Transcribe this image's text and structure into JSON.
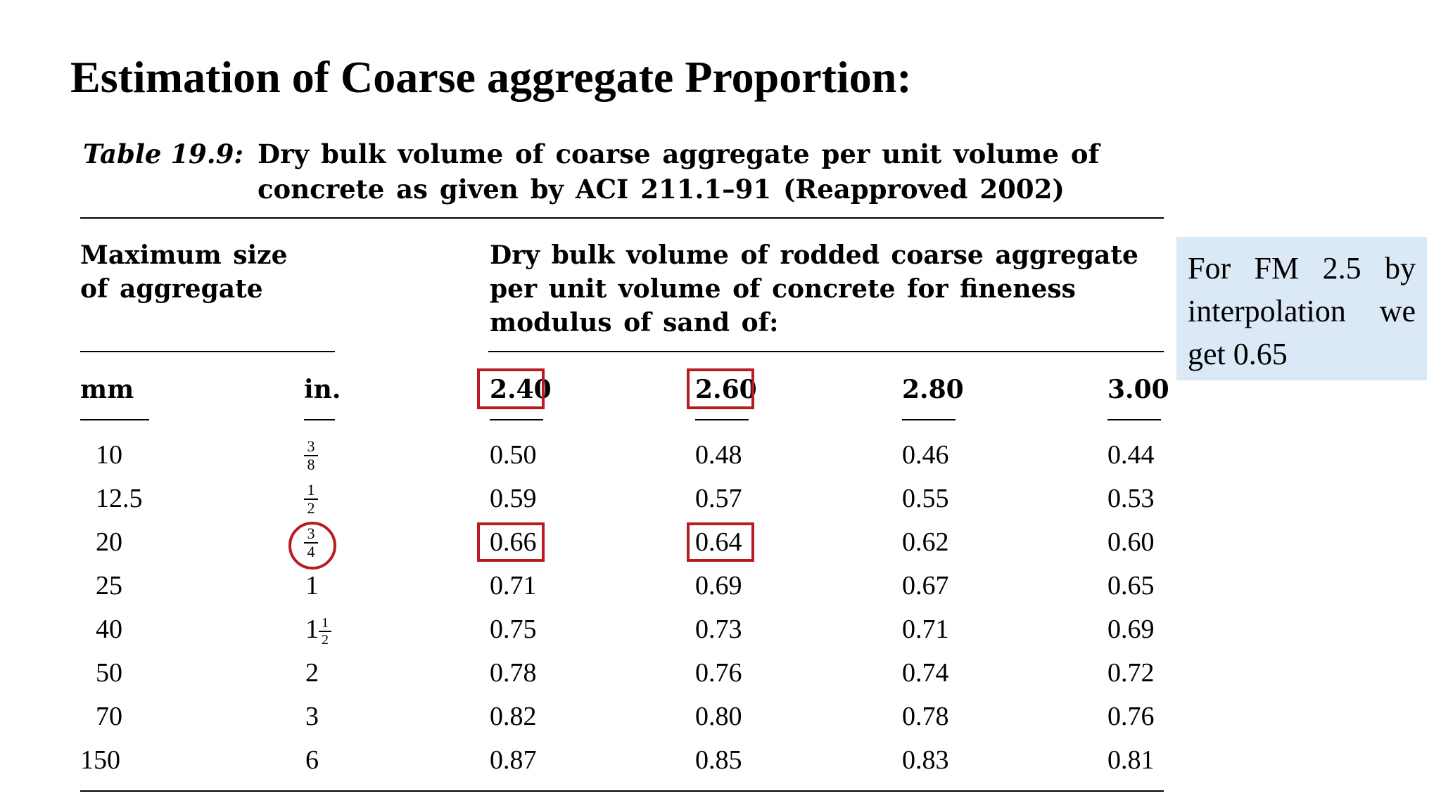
{
  "slide": {
    "title": "Estimation of Coarse aggregate Proportion:"
  },
  "table": {
    "caption_label": "Table 19.9:",
    "caption_text": "Dry bulk volume of coarse aggregate per unit volume of concrete as given by ACI 211.1–91 (Reapproved 2002)",
    "max_size_header": "Maximum size of aggregate",
    "dry_bulk_header": "Dry bulk volume of rodded coarse aggregate per unit volume of concrete for fineness modulus of sand of:",
    "col_mm": "mm",
    "col_in": "in.",
    "fm_columns": [
      "2.40",
      "2.60",
      "2.80",
      "3.00"
    ],
    "rows": [
      {
        "mm": "10",
        "in_num": "3",
        "in_den": "8",
        "values": [
          "0.50",
          "0.48",
          "0.46",
          "0.44"
        ]
      },
      {
        "mm": "12.5",
        "in_num": "1",
        "in_den": "2",
        "values": [
          "0.59",
          "0.57",
          "0.55",
          "0.53"
        ]
      },
      {
        "mm": "20",
        "in_num": "3",
        "in_den": "4",
        "values": [
          "0.66",
          "0.64",
          "0.62",
          "0.60"
        ]
      },
      {
        "mm": "25",
        "in": "1",
        "values": [
          "0.71",
          "0.69",
          "0.67",
          "0.65"
        ]
      },
      {
        "mm": "40",
        "in_whole": "1",
        "in_num": "1",
        "in_den": "2",
        "values": [
          "0.75",
          "0.73",
          "0.71",
          "0.69"
        ]
      },
      {
        "mm": "50",
        "in": "2",
        "values": [
          "0.78",
          "0.76",
          "0.74",
          "0.72"
        ]
      },
      {
        "mm": "70",
        "in": "3",
        "values": [
          "0.82",
          "0.80",
          "0.78",
          "0.76"
        ]
      },
      {
        "mm": "150",
        "in": "6",
        "values": [
          "0.87",
          "0.85",
          "0.83",
          "0.81"
        ]
      }
    ]
  },
  "note": {
    "text": "For FM 2.5 by interpolation we get 0.65"
  },
  "colors": {
    "highlight": "#b81c22",
    "note_background": "#dbe8f5"
  }
}
